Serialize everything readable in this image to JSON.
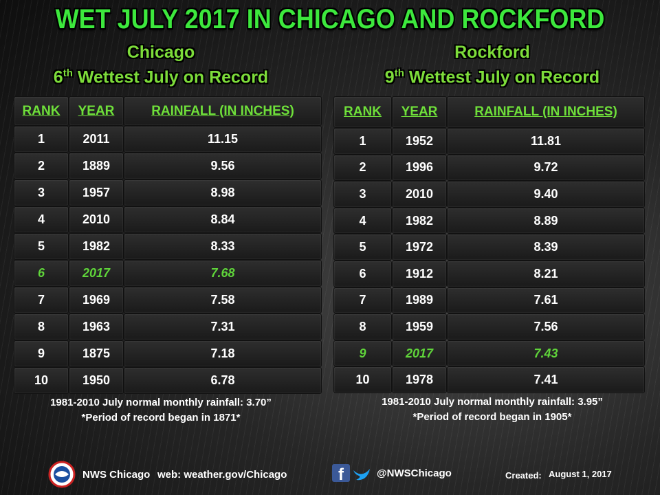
{
  "header": {
    "title": "WET JULY 2017 IN CHICAGO AND ROCKFORD"
  },
  "highlight_color": "#5fd43a",
  "panels": [
    {
      "city": "Chicago",
      "rank_number": "6",
      "rank_suffix": "th",
      "subtitle": "Wettest July on Record",
      "table": {
        "columns": [
          "RANK",
          "YEAR",
          "RAINFALL (IN INCHES)"
        ],
        "highlight_row": 5,
        "rows": [
          [
            "1",
            "2011",
            "11.15"
          ],
          [
            "2",
            "1889",
            "9.56"
          ],
          [
            "3",
            "1957",
            "8.98"
          ],
          [
            "4",
            "2010",
            "8.84"
          ],
          [
            "5",
            "1982",
            "8.33"
          ],
          [
            "6",
            "2017",
            "7.68"
          ],
          [
            "7",
            "1969",
            "7.58"
          ],
          [
            "8",
            "1963",
            "7.31"
          ],
          [
            "9",
            "1875",
            "7.18"
          ],
          [
            "10",
            "1950",
            "6.78"
          ]
        ]
      },
      "notes": [
        "1981-2010 July normal monthly rainfall: 3.70”",
        "*Period of record began in 1871*"
      ]
    },
    {
      "city": "Rockford",
      "rank_number": "9",
      "rank_suffix": "th",
      "subtitle": "Wettest July on Record",
      "table": {
        "columns": [
          "RANK",
          "YEAR",
          "RAINFALL (IN INCHES)"
        ],
        "highlight_row": 8,
        "rows": [
          [
            "1",
            "1952",
            "11.81"
          ],
          [
            "2",
            "1996",
            "9.72"
          ],
          [
            "3",
            "2010",
            "9.40"
          ],
          [
            "4",
            "1982",
            "8.89"
          ],
          [
            "5",
            "1972",
            "8.39"
          ],
          [
            "6",
            "1912",
            "8.21"
          ],
          [
            "7",
            "1989",
            "7.61"
          ],
          [
            "8",
            "1959",
            "7.56"
          ],
          [
            "9",
            "2017",
            "7.43"
          ],
          [
            "10",
            "1978",
            "7.41"
          ]
        ]
      },
      "notes": [
        "1981-2010 July normal monthly rainfall: 3.95”",
        "*Period of record began in 1905*"
      ]
    }
  ],
  "footer": {
    "office": "NWS Chicago",
    "web": "web: weather.gov/Chicago",
    "social": "@NWSChicago",
    "created_label": "Created:",
    "created_date": "August 1, 2017"
  }
}
